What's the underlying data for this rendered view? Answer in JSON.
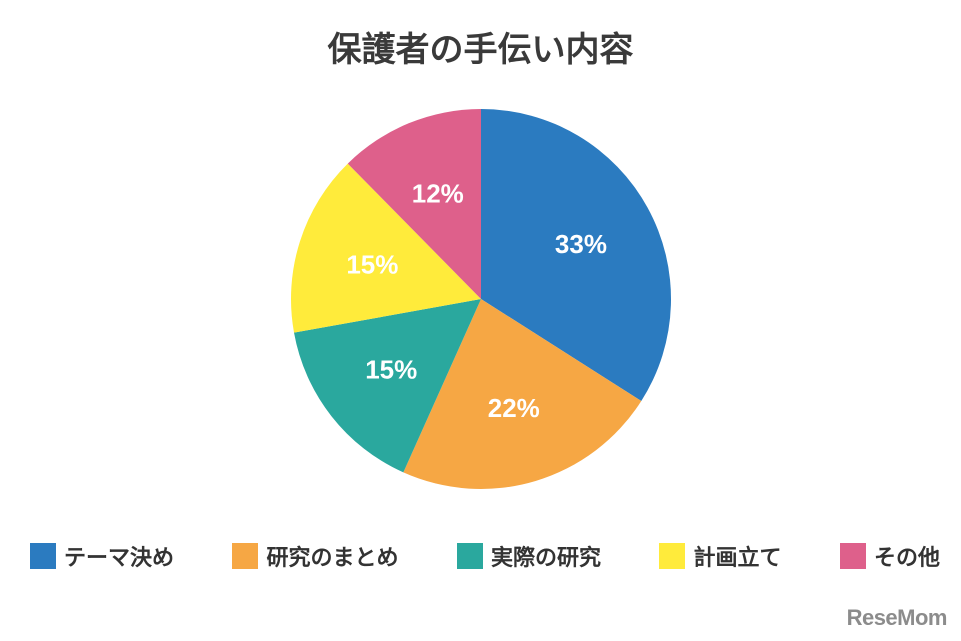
{
  "chart_data": {
    "type": "pie",
    "title": "保護者の手伝い内容",
    "slices": [
      {
        "label": "テーマ決め",
        "value": 33,
        "display": "33%",
        "color": "#2b7bc0"
      },
      {
        "label": "研究のまとめ",
        "value": 22,
        "display": "22%",
        "color": "#f6a744"
      },
      {
        "label": "実際の研究",
        "value": 15,
        "display": "15%",
        "color": "#2aa89e"
      },
      {
        "label": "計画立て",
        "value": 15,
        "display": "15%",
        "color": "#ffeb3b"
      },
      {
        "label": "その他",
        "value": 12,
        "display": "12%",
        "color": "#de608b"
      }
    ],
    "start_angle": "top",
    "direction": "clockwise",
    "legend_position": "bottom"
  },
  "watermark": "ReseMom"
}
